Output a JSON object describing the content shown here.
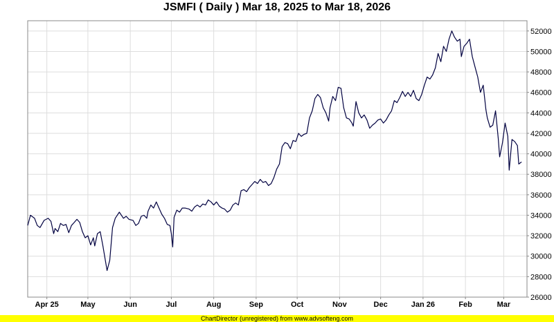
{
  "footer": {
    "text": "ChartDirector (unregistered) from www.advsofteng.com"
  },
  "colors": {
    "line": "#000040",
    "grid": "#dddddd",
    "footer_bg": "#ffff00"
  },
  "chart_data": {
    "type": "line",
    "title": "JSMFI ( Daily ) Mar 18, 2025 to Mar 18, 2026",
    "xlabel": "",
    "ylabel": "",
    "xlim": [
      "2025-03-18",
      "2026-03-18"
    ],
    "ylim": [
      26000,
      53000
    ],
    "y_ticks": [
      26000,
      28000,
      30000,
      32000,
      34000,
      36000,
      38000,
      40000,
      42000,
      44000,
      46000,
      48000,
      50000,
      52000
    ],
    "x_ticks": [
      {
        "date": "2025-04-01",
        "label": "Apr 25"
      },
      {
        "date": "2025-05-01",
        "label": "May"
      },
      {
        "date": "2025-06-01",
        "label": "Jun"
      },
      {
        "date": "2025-07-01",
        "label": "Jul"
      },
      {
        "date": "2025-08-01",
        "label": "Aug"
      },
      {
        "date": "2025-09-01",
        "label": "Sep"
      },
      {
        "date": "2025-10-01",
        "label": "Oct"
      },
      {
        "date": "2025-11-01",
        "label": "Nov"
      },
      {
        "date": "2025-12-01",
        "label": "Dec"
      },
      {
        "date": "2026-01-01",
        "label": "Jan 26"
      },
      {
        "date": "2026-02-01",
        "label": "Feb"
      },
      {
        "date": "2026-03-01",
        "label": "Mar"
      }
    ],
    "grid": true,
    "y_axis_side": "right",
    "series": [
      {
        "points": [
          [
            "2025-03-18",
            33000
          ],
          [
            "2025-03-20",
            34000
          ],
          [
            "2025-03-23",
            33700
          ],
          [
            "2025-03-25",
            33000
          ],
          [
            "2025-03-27",
            32800
          ],
          [
            "2025-03-30",
            33500
          ],
          [
            "2025-04-02",
            33700
          ],
          [
            "2025-04-04",
            33400
          ],
          [
            "2025-04-06",
            32200
          ],
          [
            "2025-04-07",
            32700
          ],
          [
            "2025-04-09",
            32400
          ],
          [
            "2025-04-11",
            33200
          ],
          [
            "2025-04-13",
            33000
          ],
          [
            "2025-04-15",
            33100
          ],
          [
            "2025-04-17",
            32300
          ],
          [
            "2025-04-19",
            33000
          ],
          [
            "2025-04-21",
            33300
          ],
          [
            "2025-04-23",
            33600
          ],
          [
            "2025-04-25",
            33300
          ],
          [
            "2025-04-27",
            32400
          ],
          [
            "2025-04-29",
            31800
          ],
          [
            "2025-05-01",
            32000
          ],
          [
            "2025-05-03",
            31100
          ],
          [
            "2025-05-05",
            31800
          ],
          [
            "2025-05-06",
            31000
          ],
          [
            "2025-05-08",
            32200
          ],
          [
            "2025-05-10",
            32400
          ],
          [
            "2025-05-12",
            31000
          ],
          [
            "2025-05-15",
            28600
          ],
          [
            "2025-05-17",
            29600
          ],
          [
            "2025-05-19",
            32800
          ],
          [
            "2025-05-21",
            33700
          ],
          [
            "2025-05-24",
            34300
          ],
          [
            "2025-05-27",
            33700
          ],
          [
            "2025-05-29",
            33900
          ],
          [
            "2025-05-31",
            33600
          ],
          [
            "2025-06-03",
            33500
          ],
          [
            "2025-06-05",
            33000
          ],
          [
            "2025-06-07",
            33200
          ],
          [
            "2025-06-09",
            33900
          ],
          [
            "2025-06-11",
            34000
          ],
          [
            "2025-06-13",
            33700
          ],
          [
            "2025-06-14",
            34400
          ],
          [
            "2025-06-16",
            35000
          ],
          [
            "2025-06-18",
            34700
          ],
          [
            "2025-06-20",
            35300
          ],
          [
            "2025-06-22",
            34700
          ],
          [
            "2025-06-24",
            34100
          ],
          [
            "2025-06-26",
            33700
          ],
          [
            "2025-06-28",
            33100
          ],
          [
            "2025-06-30",
            33000
          ],
          [
            "2025-07-01",
            32200
          ],
          [
            "2025-07-02",
            30900
          ],
          [
            "2025-07-03",
            33800
          ],
          [
            "2025-07-05",
            34500
          ],
          [
            "2025-07-07",
            34300
          ],
          [
            "2025-07-09",
            34700
          ],
          [
            "2025-07-11",
            34700
          ],
          [
            "2025-07-14",
            34600
          ],
          [
            "2025-07-16",
            34400
          ],
          [
            "2025-07-18",
            34800
          ],
          [
            "2025-07-20",
            35000
          ],
          [
            "2025-07-22",
            34800
          ],
          [
            "2025-07-24",
            35100
          ],
          [
            "2025-07-26",
            35000
          ],
          [
            "2025-07-28",
            35500
          ],
          [
            "2025-07-30",
            35300
          ],
          [
            "2025-08-01",
            35000
          ],
          [
            "2025-08-03",
            35300
          ],
          [
            "2025-08-05",
            34900
          ],
          [
            "2025-08-07",
            34700
          ],
          [
            "2025-08-09",
            34600
          ],
          [
            "2025-08-11",
            34300
          ],
          [
            "2025-08-13",
            34500
          ],
          [
            "2025-08-15",
            35000
          ],
          [
            "2025-08-17",
            35200
          ],
          [
            "2025-08-19",
            35000
          ],
          [
            "2025-08-21",
            36400
          ],
          [
            "2025-08-23",
            36500
          ],
          [
            "2025-08-25",
            36300
          ],
          [
            "2025-08-27",
            36700
          ],
          [
            "2025-08-29",
            37000
          ],
          [
            "2025-08-31",
            37300
          ],
          [
            "2025-09-02",
            37100
          ],
          [
            "2025-09-04",
            37500
          ],
          [
            "2025-09-06",
            37200
          ],
          [
            "2025-09-08",
            37300
          ],
          [
            "2025-09-10",
            36900
          ],
          [
            "2025-09-12",
            37100
          ],
          [
            "2025-09-14",
            37700
          ],
          [
            "2025-09-16",
            38500
          ],
          [
            "2025-09-18",
            39000
          ],
          [
            "2025-09-20",
            40700
          ],
          [
            "2025-09-22",
            41100
          ],
          [
            "2025-09-24",
            41000
          ],
          [
            "2025-09-26",
            40500
          ],
          [
            "2025-09-28",
            41300
          ],
          [
            "2025-09-30",
            41200
          ],
          [
            "2025-10-02",
            42000
          ],
          [
            "2025-10-04",
            41700
          ],
          [
            "2025-10-06",
            41900
          ],
          [
            "2025-10-08",
            42000
          ],
          [
            "2025-10-10",
            43500
          ],
          [
            "2025-10-12",
            44200
          ],
          [
            "2025-10-14",
            45400
          ],
          [
            "2025-10-16",
            45800
          ],
          [
            "2025-10-18",
            45500
          ],
          [
            "2025-10-20",
            44500
          ],
          [
            "2025-10-22",
            44000
          ],
          [
            "2025-10-24",
            43200
          ],
          [
            "2025-10-25",
            44500
          ],
          [
            "2025-10-27",
            45600
          ],
          [
            "2025-10-29",
            45200
          ],
          [
            "2025-10-31",
            46500
          ],
          [
            "2025-11-02",
            46400
          ],
          [
            "2025-11-04",
            44500
          ],
          [
            "2025-11-06",
            43500
          ],
          [
            "2025-11-08",
            43400
          ],
          [
            "2025-11-10",
            43000
          ],
          [
            "2025-11-11",
            42700
          ],
          [
            "2025-11-13",
            45100
          ],
          [
            "2025-11-15",
            44000
          ],
          [
            "2025-11-17",
            43500
          ],
          [
            "2025-11-19",
            43800
          ],
          [
            "2025-11-21",
            43300
          ],
          [
            "2025-11-23",
            42500
          ],
          [
            "2025-11-25",
            42800
          ],
          [
            "2025-11-27",
            43000
          ],
          [
            "2025-11-29",
            43300
          ],
          [
            "2025-12-01",
            43400
          ],
          [
            "2025-12-03",
            43000
          ],
          [
            "2025-12-05",
            43300
          ],
          [
            "2025-12-07",
            43800
          ],
          [
            "2025-12-09",
            44200
          ],
          [
            "2025-12-11",
            45200
          ],
          [
            "2025-12-13",
            45000
          ],
          [
            "2025-12-15",
            45500
          ],
          [
            "2025-12-17",
            46100
          ],
          [
            "2025-12-19",
            45600
          ],
          [
            "2025-12-21",
            46000
          ],
          [
            "2025-12-23",
            45600
          ],
          [
            "2025-12-25",
            46200
          ],
          [
            "2025-12-27",
            45400
          ],
          [
            "2025-12-29",
            45200
          ],
          [
            "2025-12-31",
            45800
          ],
          [
            "2026-01-02",
            46700
          ],
          [
            "2026-01-04",
            47500
          ],
          [
            "2026-01-06",
            47300
          ],
          [
            "2026-01-08",
            47700
          ],
          [
            "2026-01-10",
            48400
          ],
          [
            "2026-01-12",
            49800
          ],
          [
            "2026-01-14",
            49000
          ],
          [
            "2026-01-16",
            50500
          ],
          [
            "2026-01-18",
            50000
          ],
          [
            "2026-01-20",
            51200
          ],
          [
            "2026-01-22",
            52000
          ],
          [
            "2026-01-24",
            51400
          ],
          [
            "2026-01-26",
            51000
          ],
          [
            "2026-01-28",
            51200
          ],
          [
            "2026-01-29",
            49500
          ],
          [
            "2026-01-31",
            50500
          ],
          [
            "2026-02-02",
            50800
          ],
          [
            "2026-02-04",
            51200
          ],
          [
            "2026-02-06",
            49500
          ],
          [
            "2026-02-08",
            48500
          ],
          [
            "2026-02-10",
            47500
          ],
          [
            "2026-02-12",
            46000
          ],
          [
            "2026-02-14",
            46700
          ],
          [
            "2026-02-16",
            44300
          ],
          [
            "2026-02-17",
            43500
          ],
          [
            "2026-02-19",
            42600
          ],
          [
            "2026-02-21",
            42800
          ],
          [
            "2026-02-23",
            44200
          ],
          [
            "2026-02-25",
            41500
          ],
          [
            "2026-02-26",
            39700
          ],
          [
            "2026-02-28",
            41000
          ],
          [
            "2026-03-02",
            43000
          ],
          [
            "2026-03-04",
            41700
          ],
          [
            "2026-03-05",
            38400
          ],
          [
            "2026-03-07",
            41400
          ],
          [
            "2026-03-09",
            41200
          ],
          [
            "2026-03-11",
            40800
          ],
          [
            "2026-03-12",
            39000
          ],
          [
            "2026-03-14",
            39200
          ]
        ]
      }
    ]
  }
}
